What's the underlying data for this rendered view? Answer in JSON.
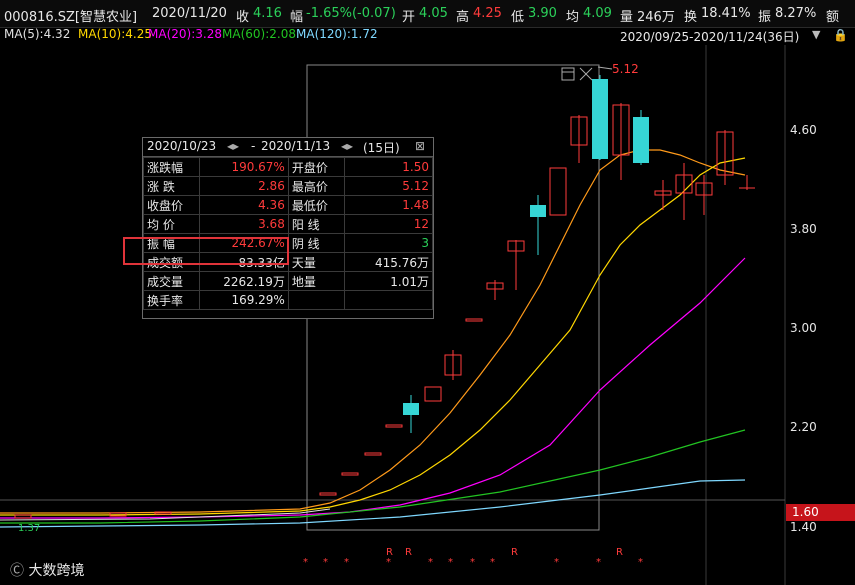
{
  "header": {
    "symbol": "000816.SZ[智慧农业]",
    "date": "2020/11/20",
    "close_label": "收",
    "close": "4.16",
    "change_label": "幅",
    "change": "-1.65%(-0.07)",
    "open_label": "开",
    "open": "4.05",
    "high_label": "高",
    "high": "4.25",
    "low_label": "低",
    "low": "3.90",
    "avg_label": "均",
    "avg": "4.09",
    "volume_label": "量",
    "volume": "246万",
    "turnover_label": "换",
    "turnover": "18.41%",
    "amplitude_label": "振",
    "amplitude": "8.27%",
    "amount_label": "额"
  },
  "ma": {
    "ma5": "MA(5):4.32",
    "ma10": "MA(10):4.25",
    "ma20": "MA(20):3.28",
    "ma60": "MA(60):2.08",
    "ma120": "MA(120):1.72"
  },
  "range": "2020/09/25-2020/11/24(36日)",
  "colors": {
    "up": "#ff3b3b",
    "down": "#36d6d6",
    "ma5": "#e0e0e0",
    "ma10": "#ffd700",
    "ma20": "#ff00ff",
    "ma60": "#22c322",
    "ma120": "#7fd8ff",
    "ma_orange": "#ff9a1a"
  },
  "yaxis": [
    "4.60",
    "3.80",
    "3.00",
    "2.20",
    "1.40"
  ],
  "current_price": "1.60",
  "peak_label": "5.12",
  "low_label": "1.37",
  "watermark": "大数跨境",
  "info_panel": {
    "start": "2020/10/23",
    "sep": "-",
    "end": "2020/11/13",
    "days": "(15日)",
    "rows": [
      {
        "k1": "涨跌幅",
        "v1": "190.67%",
        "c1": "red",
        "k2": "开盘价",
        "v2": "1.50",
        "c2": "red"
      },
      {
        "k1": "涨  跌",
        "v1": "2.86",
        "c1": "red",
        "k2": "最高价",
        "v2": "5.12",
        "c2": "red"
      },
      {
        "k1": "收盘价",
        "v1": "4.36",
        "c1": "red",
        "k2": "最低价",
        "v2": "1.48",
        "c2": "red"
      },
      {
        "k1": "均  价",
        "v1": "3.68",
        "c1": "red",
        "k2": "阳  线",
        "v2": "12",
        "c2": "red"
      },
      {
        "k1": "振  幅",
        "v1": "242.67%",
        "c1": "red",
        "k2": "阴  线",
        "v2": "3",
        "c2": "green"
      },
      {
        "k1": "成交额",
        "v1": "83.33亿",
        "c1": "white",
        "k2": "天量",
        "v2": "415.76万",
        "c2": "white"
      },
      {
        "k1": "成交量",
        "v1": "2262.19万",
        "c1": "white",
        "k2": "地量",
        "v2": "1.01万",
        "c2": "white"
      },
      {
        "k1": "换手率",
        "v1": "169.29%",
        "c1": "white",
        "k2": "",
        "v2": "",
        "c2": "white"
      }
    ]
  }
}
